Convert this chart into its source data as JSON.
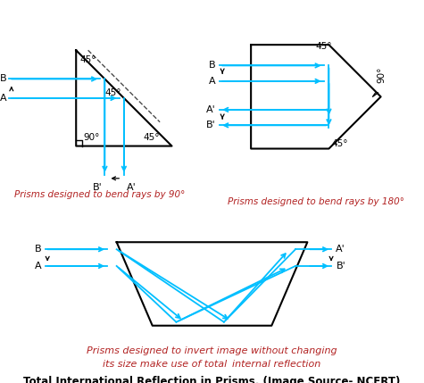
{
  "bg_color": "#ffffff",
  "cyan": "#00BFFF",
  "black": "#000000",
  "red_text": "#b22222",
  "title": "Total International Reflection in Prisms. (Image Source- NCERT)",
  "label1": "Prisms designed to bend rays by 90°",
  "label2": "Prisms designed to bend rays by 180°",
  "label3_line1": "Prisms designed to invert image without changing",
  "label3_line2": "its size make use of total  internal reflection"
}
